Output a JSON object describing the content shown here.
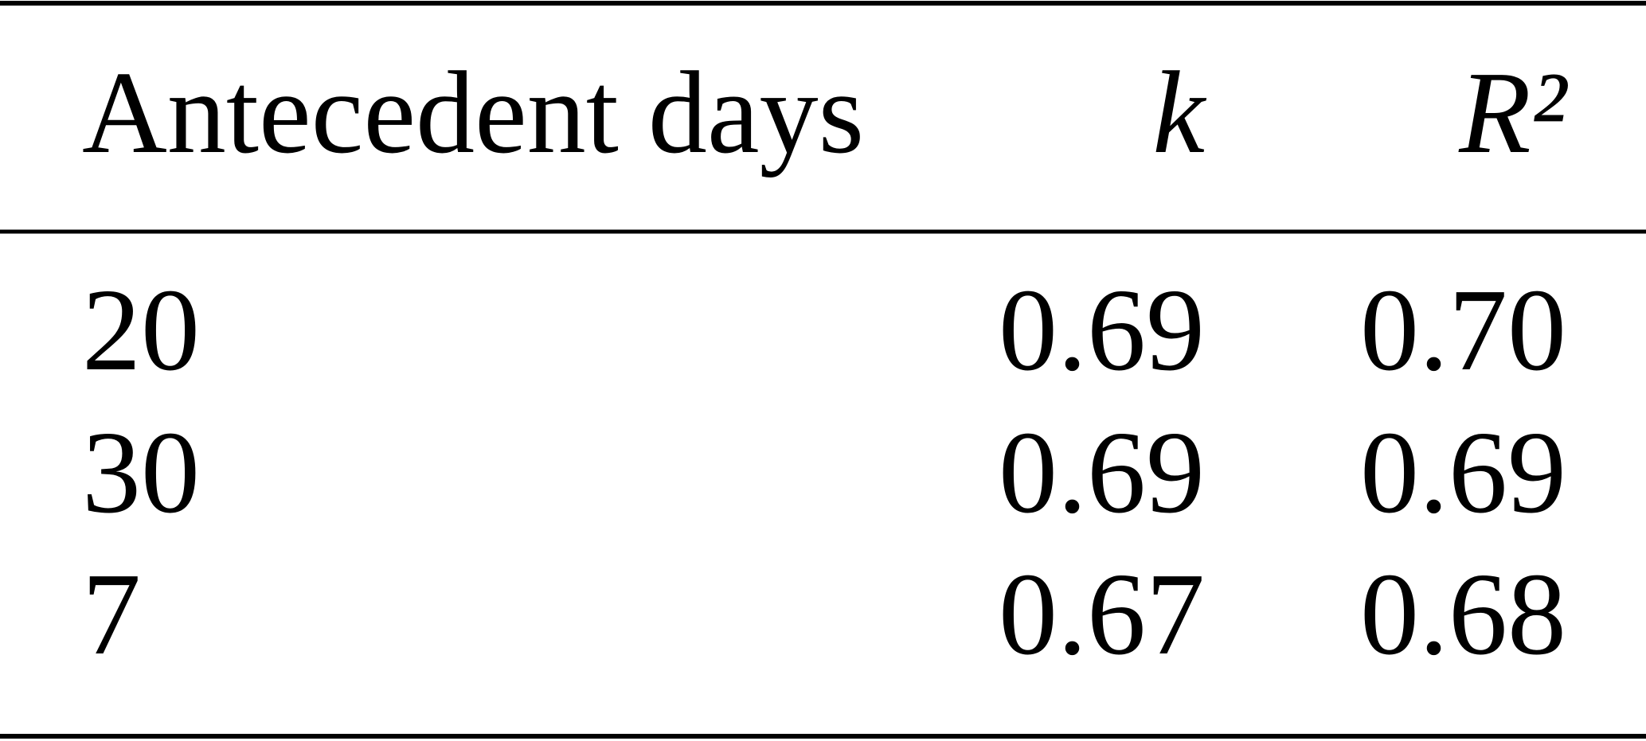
{
  "table": {
    "header": [
      "Antecedent days",
      "k",
      "R²"
    ],
    "rows": [
      [
        "20",
        "0.69",
        "0.70"
      ],
      [
        "30",
        "0.69",
        "0.69"
      ],
      [
        "7",
        "0.67",
        "0.68"
      ]
    ]
  }
}
